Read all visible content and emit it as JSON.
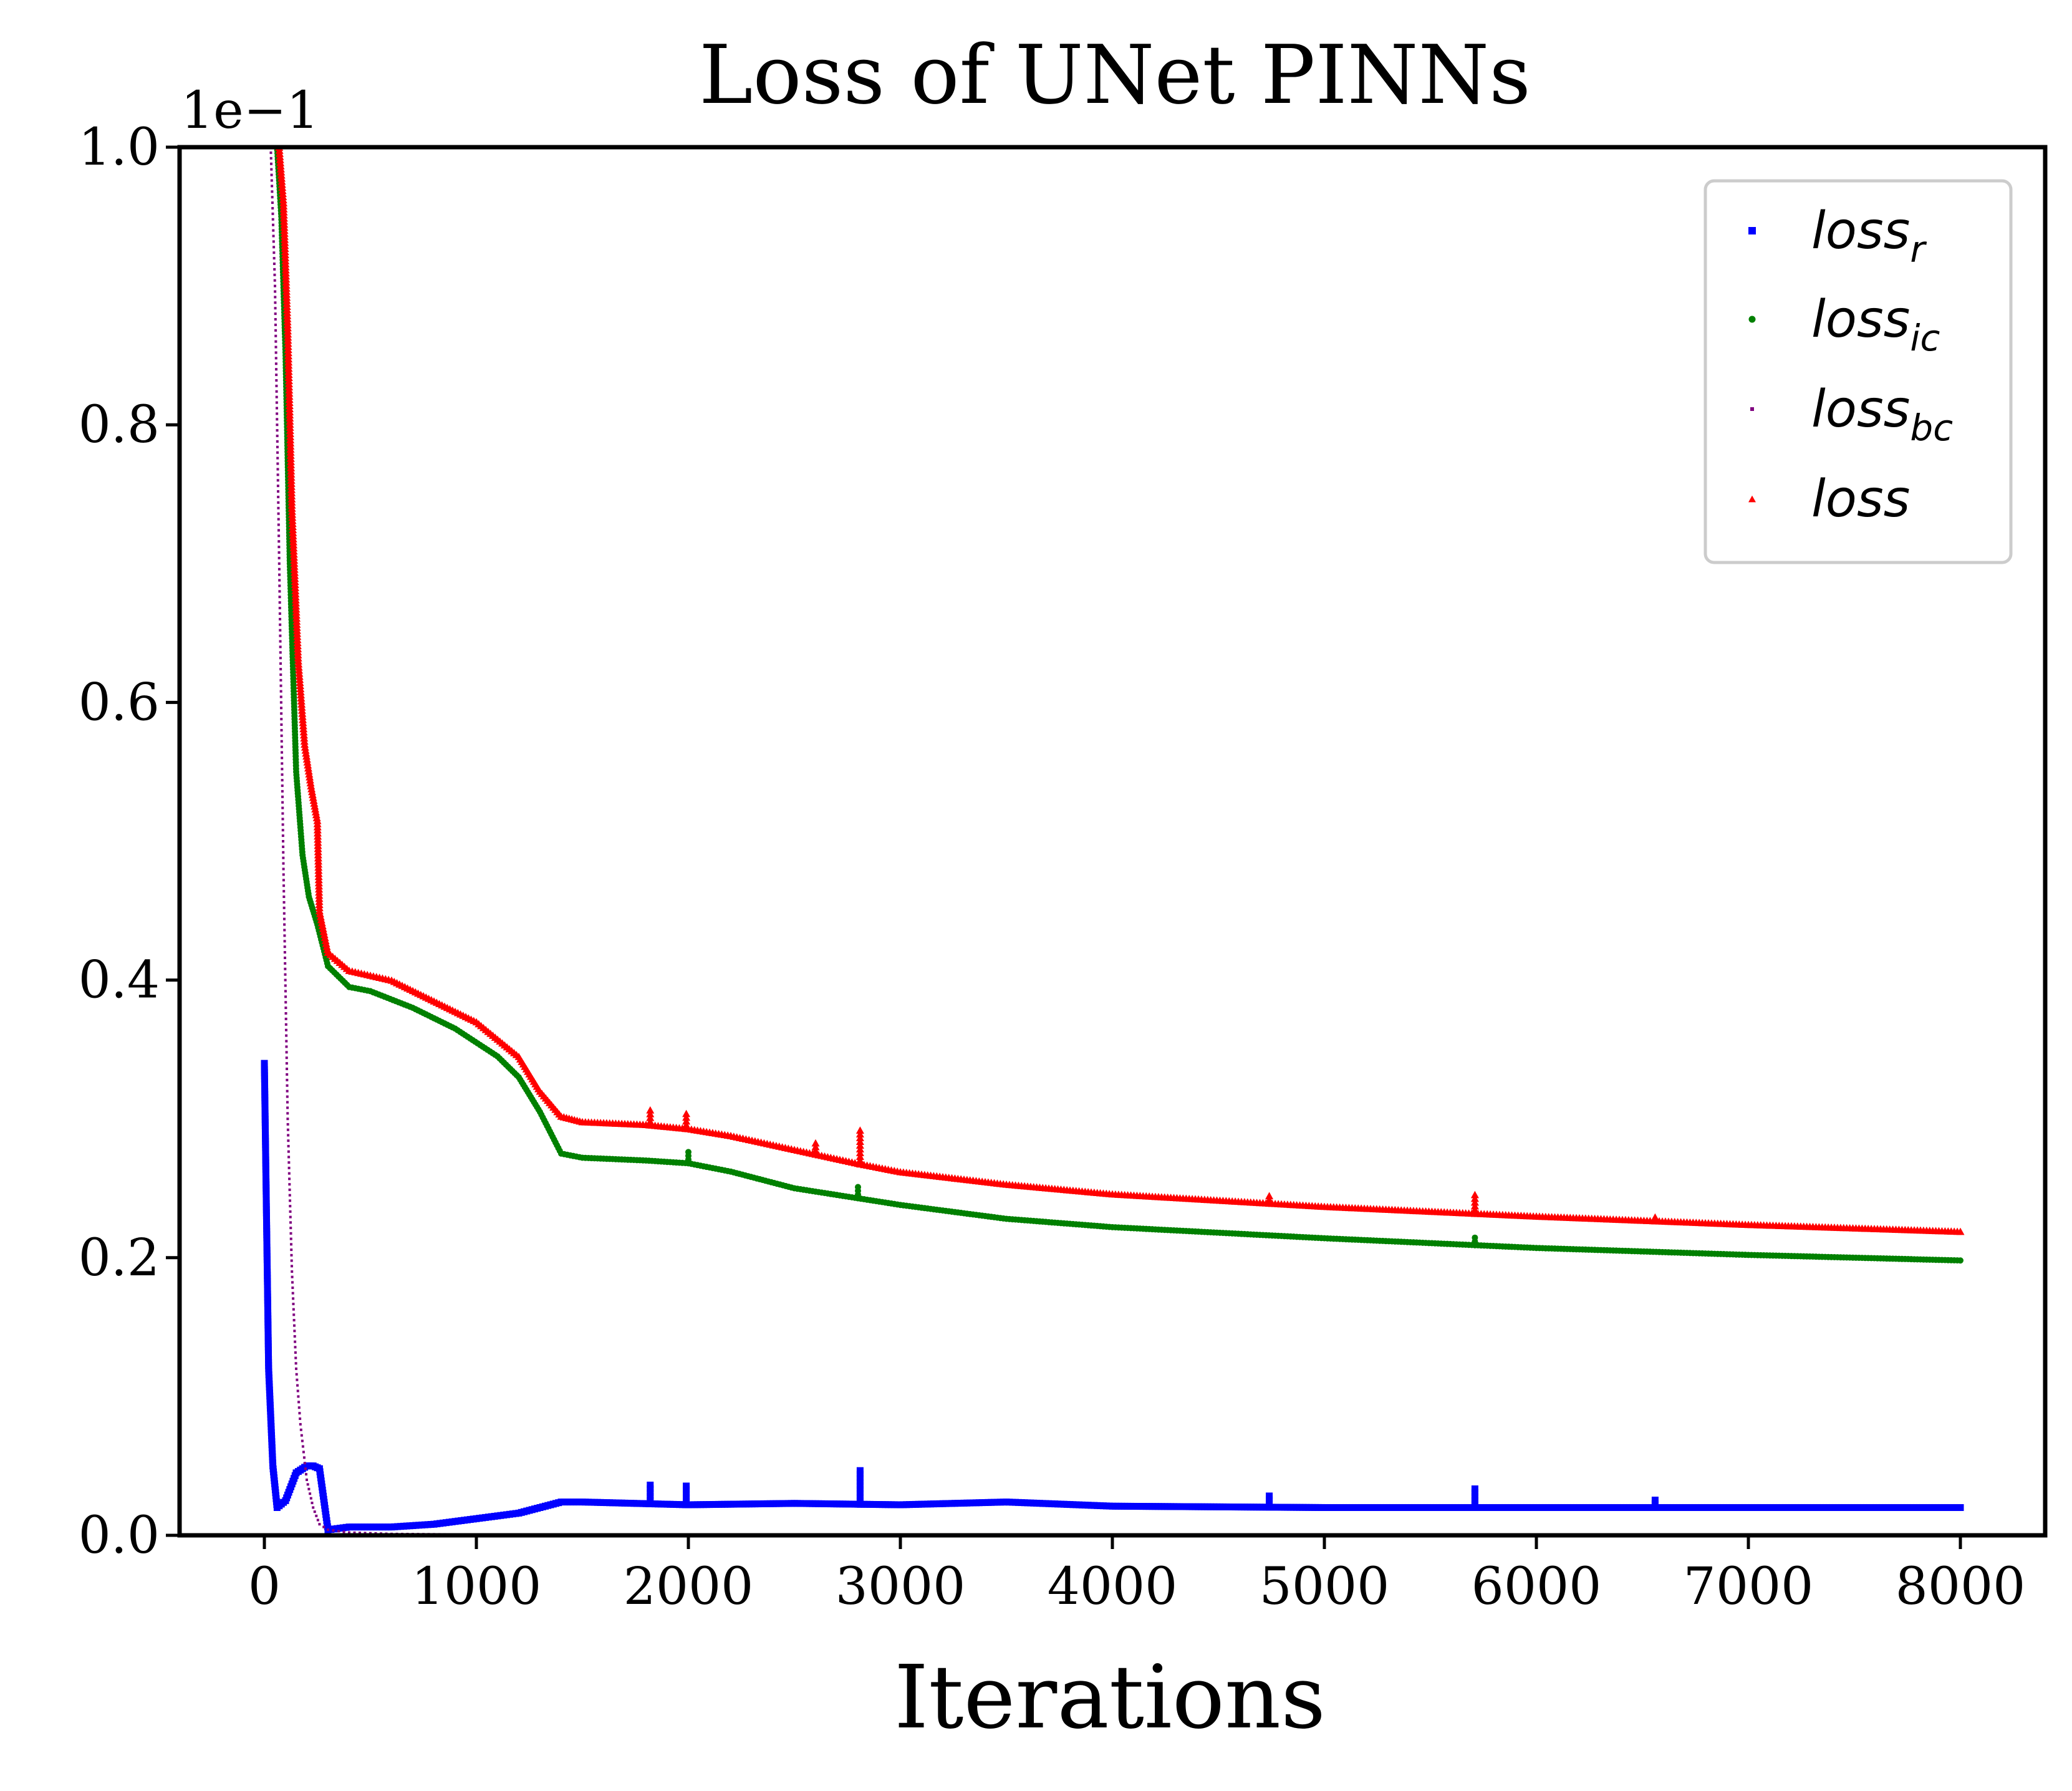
{
  "chart_data": {
    "type": "line",
    "title": "Loss of UNet PINNs",
    "xlabel": "Iterations",
    "ylabel": "",
    "y_scale_label": "1e−1",
    "xlim": [
      -400,
      8400
    ],
    "ylim": [
      0,
      1.0
    ],
    "x_ticks": [
      0,
      1000,
      2000,
      3000,
      4000,
      5000,
      6000,
      7000,
      8000
    ],
    "x_tick_labels": [
      "0",
      "1000",
      "2000",
      "3000",
      "4000",
      "5000",
      "6000",
      "7000",
      "8000"
    ],
    "y_ticks": [
      0.0,
      0.2,
      0.4,
      0.6,
      0.8,
      1.0
    ],
    "y_tick_labels": [
      "0.0",
      "0.2",
      "0.4",
      "0.6",
      "0.8",
      "1.0"
    ],
    "grid": false,
    "legend_position": "top-right",
    "series": [
      {
        "name": "loss",
        "subscript": "r",
        "color": "#0000ff",
        "marker": "square",
        "x": [
          0,
          20,
          40,
          60,
          100,
          150,
          200,
          230,
          260,
          300,
          400,
          600,
          800,
          1000,
          1200,
          1300,
          1400,
          1500,
          2000,
          2500,
          3000,
          3500,
          4000,
          5000,
          6000,
          7000,
          8000
        ],
        "y": [
          0.34,
          0.12,
          0.05,
          0.02,
          0.025,
          0.045,
          0.05,
          0.05,
          0.048,
          0.004,
          0.006,
          0.006,
          0.008,
          0.012,
          0.016,
          0.02,
          0.024,
          0.024,
          0.022,
          0.023,
          0.022,
          0.024,
          0.021,
          0.02,
          0.02,
          0.02,
          0.02
        ],
        "spikes": [
          [
            1820,
            0.038
          ],
          [
            1990,
            0.037
          ],
          [
            2810,
            0.047
          ],
          [
            4740,
            0.03
          ],
          [
            5710,
            0.035
          ],
          [
            6560,
            0.028
          ]
        ]
      },
      {
        "name": "loss",
        "subscript": "ic",
        "color": "#008000",
        "marker": "circle",
        "x": [
          60,
          80,
          100,
          120,
          150,
          180,
          210,
          250,
          300,
          400,
          500,
          700,
          900,
          1100,
          1200,
          1300,
          1400,
          1500,
          1800,
          2000,
          2200,
          2500,
          3000,
          3500,
          4000,
          5000,
          6000,
          7000,
          8000
        ],
        "y": [
          1.0,
          0.95,
          0.85,
          0.7,
          0.55,
          0.49,
          0.46,
          0.44,
          0.41,
          0.395,
          0.392,
          0.38,
          0.365,
          0.345,
          0.33,
          0.305,
          0.275,
          0.272,
          0.27,
          0.268,
          0.262,
          0.25,
          0.238,
          0.228,
          0.222,
          0.214,
          0.207,
          0.202,
          0.198
        ],
        "spikes": [
          [
            2000,
            0.277
          ],
          [
            2800,
            0.253
          ],
          [
            5710,
            0.215
          ]
        ]
      },
      {
        "name": "loss",
        "subscript": "bc",
        "color": "#800080",
        "marker": "pixel",
        "x": [
          30,
          50,
          70,
          90,
          110,
          130,
          150,
          170,
          200,
          230,
          260,
          300,
          400,
          600,
          1000,
          2000,
          4000,
          8000
        ],
        "y": [
          1.0,
          0.9,
          0.7,
          0.48,
          0.3,
          0.19,
          0.12,
          0.08,
          0.04,
          0.02,
          0.008,
          0.004,
          0.002,
          0.001,
          0.0005,
          0.0002,
          0.0001,
          0.0001
        ],
        "spikes": []
      },
      {
        "name": "loss",
        "subscript": "",
        "color": "#ff0000",
        "marker": "triangle",
        "x": [
          70,
          90,
          110,
          130,
          160,
          190,
          220,
          250,
          260,
          300,
          400,
          600,
          800,
          1000,
          1200,
          1300,
          1400,
          1500,
          1800,
          2000,
          2200,
          2500,
          2800,
          3000,
          3500,
          4000,
          5000,
          6000,
          7000,
          8000
        ],
        "y": [
          1.0,
          0.96,
          0.87,
          0.74,
          0.63,
          0.57,
          0.54,
          0.515,
          0.45,
          0.42,
          0.407,
          0.4,
          0.385,
          0.37,
          0.345,
          0.32,
          0.302,
          0.298,
          0.296,
          0.293,
          0.288,
          0.278,
          0.268,
          0.262,
          0.253,
          0.246,
          0.237,
          0.23,
          0.224,
          0.219
        ],
        "spikes": [
          [
            1820,
            0.307
          ],
          [
            1990,
            0.305
          ],
          [
            2600,
            0.285
          ],
          [
            2810,
            0.293
          ],
          [
            4740,
            0.247
          ],
          [
            5710,
            0.247
          ],
          [
            6560,
            0.232
          ]
        ]
      }
    ]
  }
}
